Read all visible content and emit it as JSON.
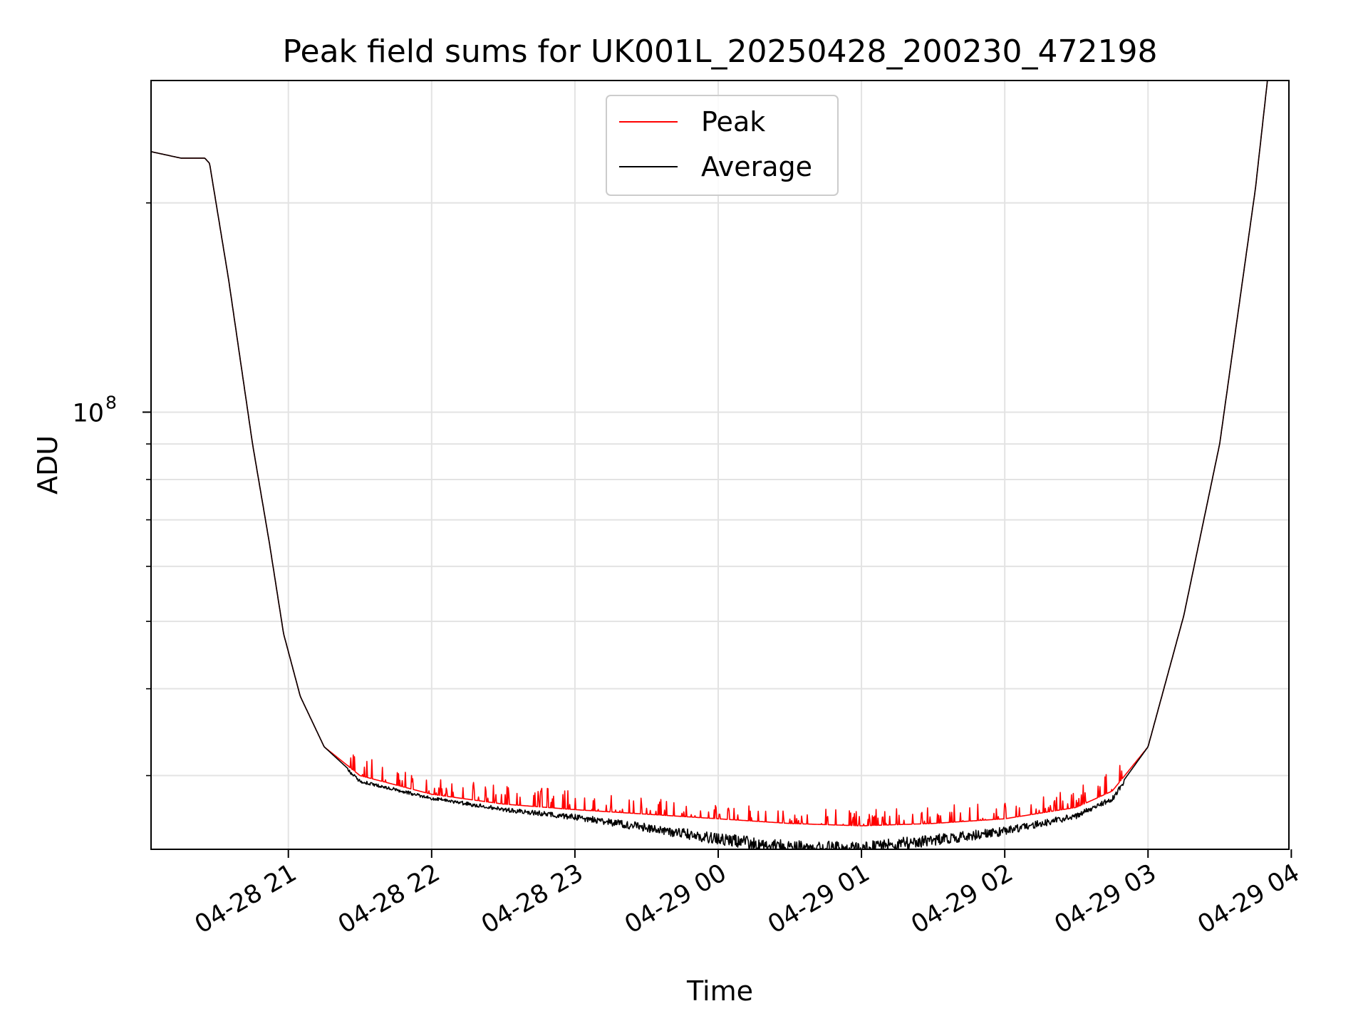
{
  "chart_data": {
    "type": "line",
    "title": "Peak field sums for UK001L_20250428_200230_472198",
    "xlabel": "Time",
    "ylabel": "ADU",
    "y_scale": "log",
    "ylim": [
      23500000,
      300000000
    ],
    "xlim": [
      "2025-04-28 20:02:30",
      "2025-04-29 03:59:00"
    ],
    "x_ticks": [
      {
        "t": "2025-04-28 21:00",
        "label": "04-28 21"
      },
      {
        "t": "2025-04-28 22:00",
        "label": "04-28 22"
      },
      {
        "t": "2025-04-28 23:00",
        "label": "04-28 23"
      },
      {
        "t": "2025-04-29 00:00",
        "label": "04-29 00"
      },
      {
        "t": "2025-04-29 01:00",
        "label": "04-29 01"
      },
      {
        "t": "2025-04-29 02:00",
        "label": "04-29 02"
      },
      {
        "t": "2025-04-29 03:00",
        "label": "04-29 03"
      },
      {
        "t": "2025-04-29 04:00",
        "label": "04-29 04"
      }
    ],
    "y_major_ticks": [
      {
        "value": 100000000,
        "base": "10",
        "exp": "8"
      }
    ],
    "y_minor_ticks": [
      30000000,
      40000000,
      50000000,
      60000000,
      70000000,
      80000000,
      90000000,
      200000000
    ],
    "grid": true,
    "legend_position": "top-center",
    "series": [
      {
        "name": "Peak",
        "color": "#ff0000",
        "x": [
          "2025-04-28 20:02:30",
          "2025-04-28 20:15",
          "2025-04-28 20:25",
          "2025-04-28 20:27",
          "2025-04-28 20:35",
          "2025-04-28 20:45",
          "2025-04-28 20:52",
          "2025-04-28 20:58",
          "2025-04-28 21:05",
          "2025-04-28 21:15",
          "2025-04-28 21:30",
          "2025-04-28 22:00",
          "2025-04-28 22:30",
          "2025-04-28 23:00",
          "2025-04-28 23:30",
          "2025-04-29 00:00",
          "2025-04-29 00:30",
          "2025-04-29 01:00",
          "2025-04-29 01:30",
          "2025-04-29 02:00",
          "2025-04-29 02:30",
          "2025-04-29 02:45",
          "2025-04-29 03:00",
          "2025-04-29 03:15",
          "2025-04-29 03:30",
          "2025-04-29 03:45",
          "2025-04-29 03:50"
        ],
        "y": [
          237000000,
          232000000,
          232000000,
          228000000,
          155000000,
          90000000,
          65000000,
          48000000,
          39000000,
          33000000,
          30000000,
          28200000,
          27300000,
          26800000,
          26400000,
          26000000,
          25600000,
          25400000,
          25600000,
          26000000,
          27000000,
          28500000,
          33000000,
          51000000,
          90000000,
          210000000,
          300000000
        ]
      },
      {
        "name": "Average",
        "color": "#000000",
        "x": [
          "2025-04-28 20:02:30",
          "2025-04-28 20:15",
          "2025-04-28 20:25",
          "2025-04-28 20:27",
          "2025-04-28 20:35",
          "2025-04-28 20:45",
          "2025-04-28 20:52",
          "2025-04-28 20:58",
          "2025-04-28 21:05",
          "2025-04-28 21:15",
          "2025-04-28 21:30",
          "2025-04-28 22:00",
          "2025-04-28 22:30",
          "2025-04-28 23:00",
          "2025-04-28 23:30",
          "2025-04-29 00:00",
          "2025-04-29 00:30",
          "2025-04-29 01:00",
          "2025-04-29 01:30",
          "2025-04-29 02:00",
          "2025-04-29 02:30",
          "2025-04-29 02:45",
          "2025-04-29 03:00",
          "2025-04-29 03:15",
          "2025-04-29 03:30",
          "2025-04-29 03:45",
          "2025-04-29 03:50"
        ],
        "y": [
          237000000,
          232000000,
          232000000,
          228000000,
          155000000,
          90000000,
          65000000,
          48000000,
          39000000,
          33000000,
          29600000,
          28000000,
          27000000,
          26400000,
          25600000,
          24800000,
          24200000,
          24100000,
          24700000,
          25300000,
          26500000,
          28000000,
          33000000,
          51000000,
          90000000,
          210000000,
          300000000
        ]
      }
    ]
  }
}
